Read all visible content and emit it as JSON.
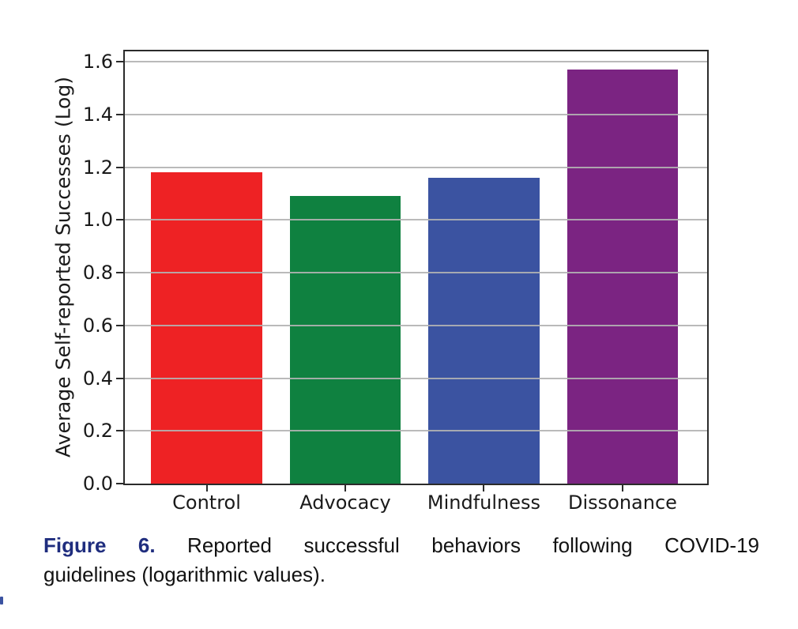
{
  "figure": {
    "caption": {
      "label": "Figure 6.",
      "line1_rest": "Reported successful behaviors following COVID-19",
      "line2": "guidelines (logarithmic values).",
      "label_color": "#1f2d7e"
    }
  },
  "chart_data": {
    "type": "bar",
    "title": "",
    "categories": [
      "Control",
      "Advocacy",
      "Mindfulness",
      "Dissonance"
    ],
    "values": [
      1.18,
      1.09,
      1.16,
      1.57
    ],
    "bar_colors": [
      "#ee2224",
      "#0f8140",
      "#3b53a1",
      "#7b2482"
    ],
    "xlabel": "",
    "ylabel": "Average Self-reported Successes (Log)",
    "ylim": [
      0,
      1.64
    ],
    "xlim": [
      -0.59,
      3.61
    ],
    "yticks": [
      0.0,
      0.2,
      0.4,
      0.6,
      0.8,
      1.0,
      1.2,
      1.4,
      1.6
    ],
    "bar_width": 0.8,
    "grid": true,
    "grid_color": "#b2b2b2",
    "grid_over_bars": true,
    "frame_color": "#2b2b2b",
    "tick_label_color": "#1a1a1a",
    "legend": null
  }
}
